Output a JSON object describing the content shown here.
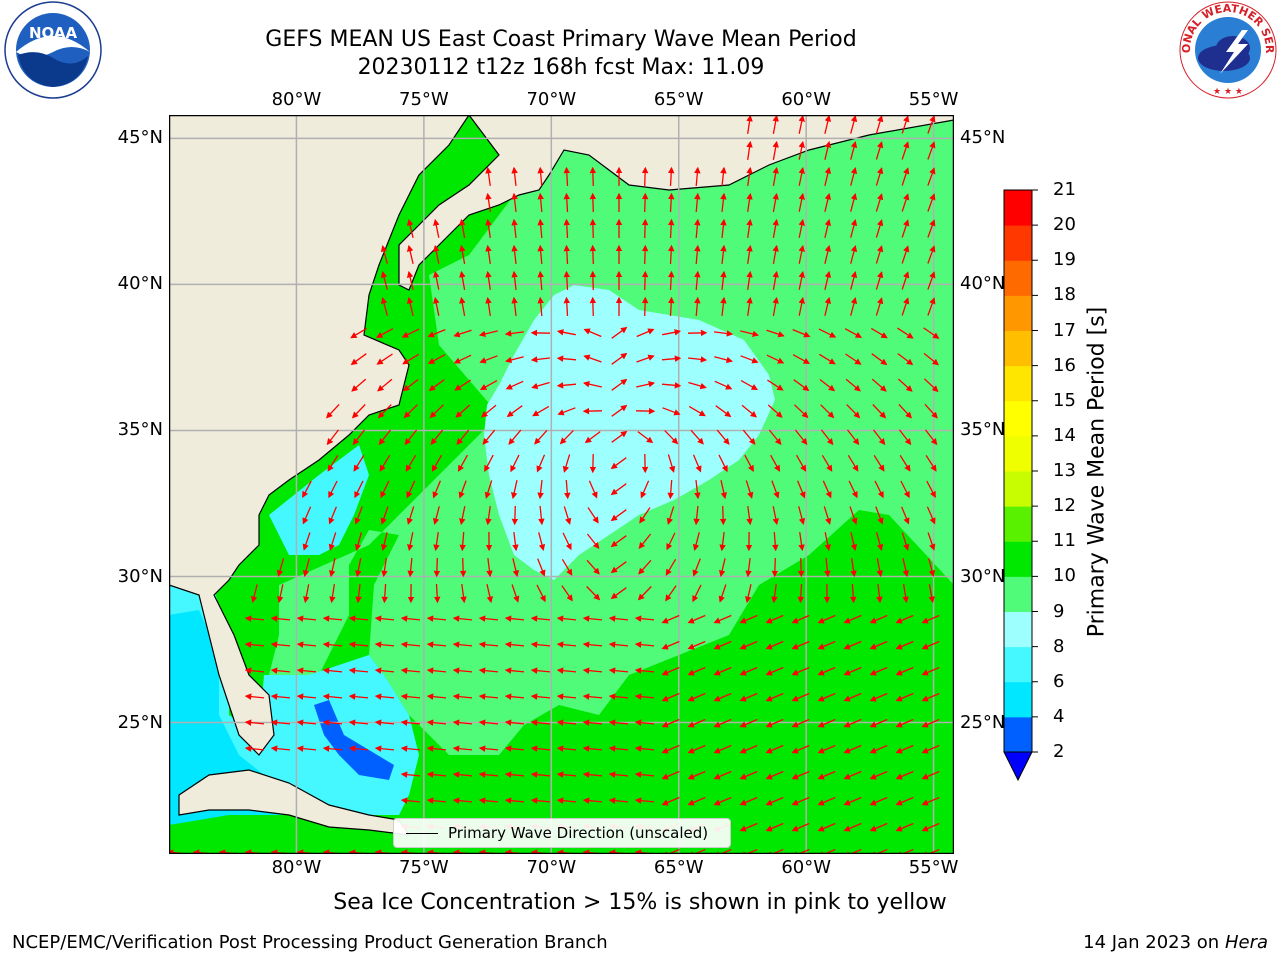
{
  "title": {
    "line1": "GEFS MEAN US East Coast Primary Wave Mean Period",
    "line2": "20230112 t12z 168h fcst   Max: 11.09"
  },
  "map": {
    "lon_range": [
      -85,
      -54.2
    ],
    "lat_range": [
      20.5,
      45.8
    ],
    "lon_ticks": [
      "80°W",
      "75°W",
      "70°W",
      "65°W",
      "60°W",
      "55°W"
    ],
    "lat_ticks": [
      "45°N",
      "40°N",
      "35°N",
      "30°N",
      "25°N"
    ],
    "land_color": "#efecdc",
    "arrow_color": "#ff0000",
    "grid": true
  },
  "legend": {
    "text": "Primary Wave Direction (unscaled)"
  },
  "colorbar": {
    "label": "Primary Wave Mean Period [s]",
    "ticks": [
      "2",
      "4",
      "6",
      "8",
      "9",
      "10",
      "11",
      "12",
      "13",
      "14",
      "15",
      "16",
      "17",
      "18",
      "19",
      "20",
      "21"
    ],
    "colors": [
      "#0060ff",
      "#00e7ff",
      "#45f8ff",
      "#9effff",
      "#50fb7a",
      "#00e800",
      "#5af100",
      "#c7fd00",
      "#f0ff00",
      "#ffff00",
      "#ffe600",
      "#ffbf00",
      "#ff9800",
      "#ff6a00",
      "#ff3800",
      "#ff0000"
    ],
    "under_color": "#0000ff"
  },
  "subtitle": "Sea Ice Concentration > 15% is shown in pink to yellow",
  "footer": {
    "left": "NCEP/EMC/Verification Post Processing Product Generation Branch",
    "right_date": "14 Jan 2023 on ",
    "right_host": "Hera"
  },
  "logos": {
    "noaa": "NOAA",
    "nws": "NATIONAL WEATHER SERVICE"
  }
}
